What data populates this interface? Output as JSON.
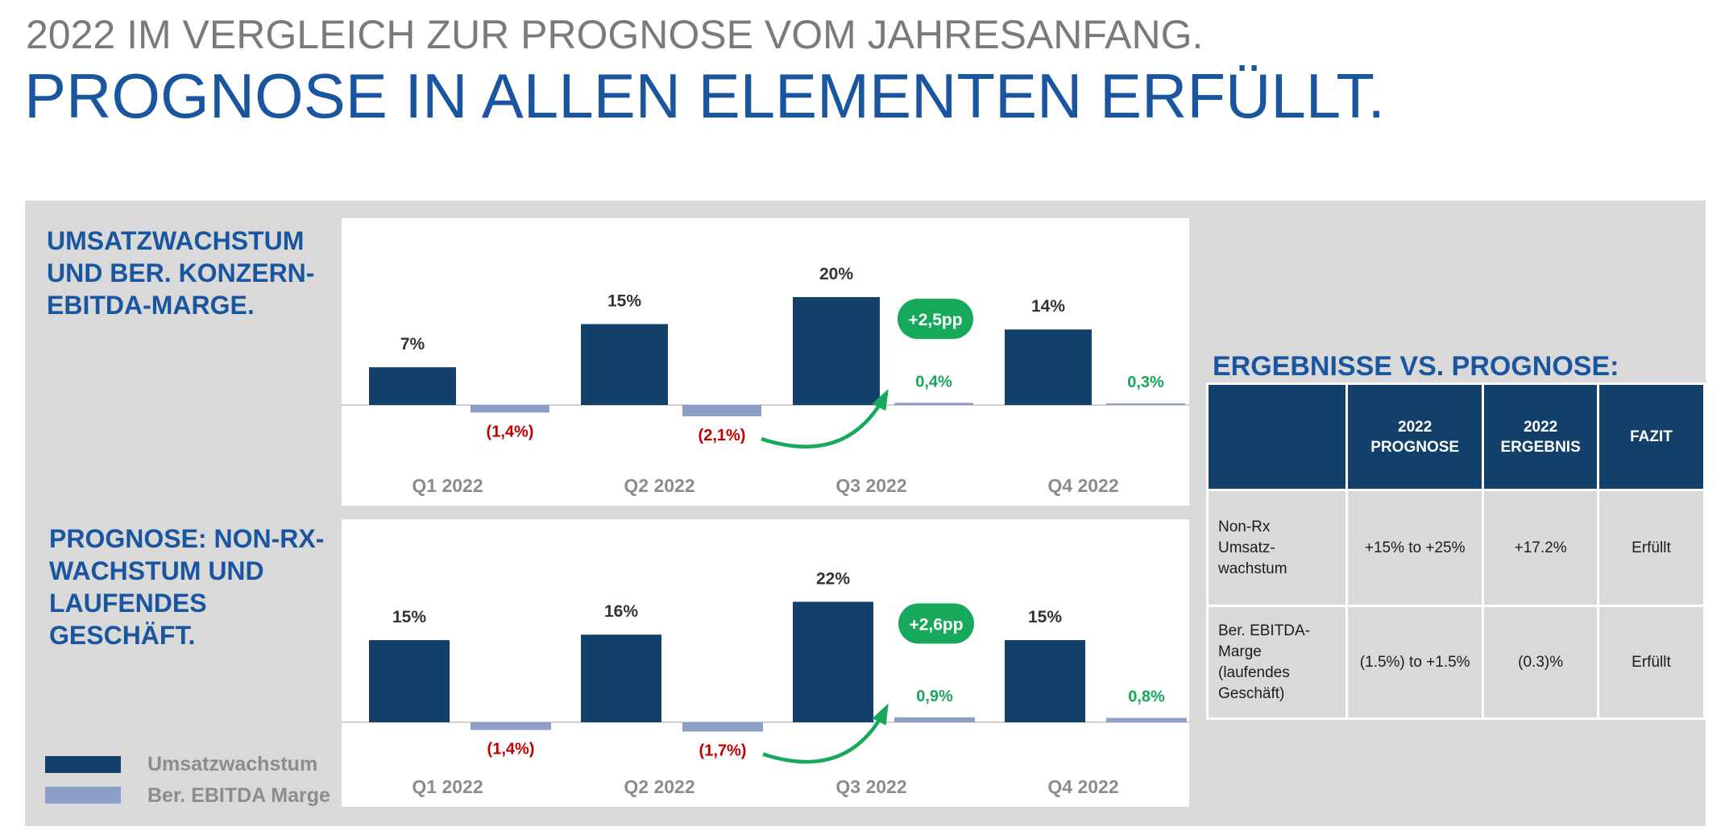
{
  "header": {
    "supertitle": "2022 IM VERGLEICH ZUR PROGNOSE VOM JAHRESANFANG.",
    "title": "PROGNOSE IN ALLEN ELEMENTEN ERFÜLLT."
  },
  "colors": {
    "primary_bar": "#13406a",
    "secondary_bar": "#8d9ec8",
    "positive": "#16a85b",
    "negative": "#c00000",
    "heading": "#1a56a0"
  },
  "sections": {
    "top_title": [
      "UMSATZWACHSTUM",
      "UND BER. KONZERN-",
      "EBITDA-MARGE."
    ],
    "bottom_title": [
      "PROGNOSE: NON-RX-",
      "WACHSTUM UND",
      "LAUFENDES",
      "GESCHÄFT."
    ]
  },
  "legend": {
    "items": [
      "Umsatzwachstum",
      "Ber. EBITDA Marge"
    ]
  },
  "chart_data": [
    {
      "type": "bar",
      "categories": [
        "Q1 2022",
        "Q2 2022",
        "Q3 2022",
        "Q4 2022"
      ],
      "series": [
        {
          "name": "Umsatzwachstum",
          "values": [
            7,
            15,
            20,
            14
          ],
          "labels": [
            "7%",
            "15%",
            "20%",
            "14%"
          ]
        },
        {
          "name": "Ber. EBITDA Marge",
          "values": [
            -1.4,
            -2.1,
            0.4,
            0.3
          ],
          "labels": [
            "(1,4%)",
            "(2,1%)",
            "0,4%",
            "0,3%"
          ]
        }
      ],
      "callout": {
        "text": "+2,5pp",
        "from": "Q2 2022",
        "to": "Q3 2022"
      }
    },
    {
      "type": "bar",
      "categories": [
        "Q1 2022",
        "Q2 2022",
        "Q3 2022",
        "Q4 2022"
      ],
      "series": [
        {
          "name": "Umsatzwachstum",
          "values": [
            15,
            16,
            22,
            15
          ],
          "labels": [
            "15%",
            "16%",
            "22%",
            "15%"
          ]
        },
        {
          "name": "Ber. EBITDA Marge",
          "values": [
            -1.4,
            -1.7,
            0.9,
            0.8
          ],
          "labels": [
            "(1,4%)",
            "(1,7%)",
            "0,9%",
            "0,8%"
          ]
        }
      ],
      "callout": {
        "text": "+2,6pp",
        "from": "Q2 2022",
        "to": "Q3 2022"
      }
    }
  ],
  "results": {
    "title": "ERGEBNISSE VS. PROGNOSE:",
    "columns": [
      "",
      "2022\nPROGNOSE",
      "2022\nERGEBNIS",
      "FAZIT"
    ],
    "rows": [
      {
        "label": "Non-Rx\nUmsatz-\nwachstum",
        "prognose": "+15% to +25%",
        "ergebnis": "+17.2%",
        "fazit": "Erfüllt"
      },
      {
        "label": "Ber. EBITDA-\nMarge\n(laufendes\nGeschäft)",
        "prognose": "(1.5%) to +1.5%",
        "ergebnis": "(0.3)%",
        "fazit": "Erfüllt"
      }
    ]
  }
}
